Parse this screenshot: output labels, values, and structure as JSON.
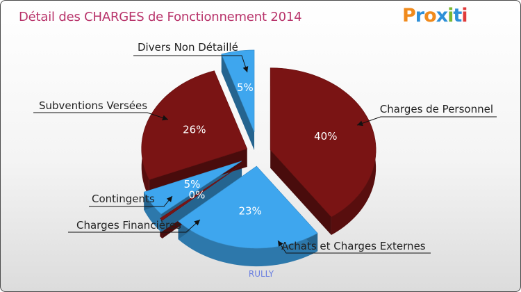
{
  "title": "Détail des CHARGES de Fonctionnement 2014",
  "logo_text": "Proxiti",
  "logo_colors": [
    "#f08a1c",
    "#2d8fd8",
    "#f08a1c",
    "#2d8fd8",
    "#7ab830",
    "#2d8fd8",
    "#e03a3a"
  ],
  "footer": "RULLY",
  "chart_data": {
    "type": "pie",
    "title": "Détail des CHARGES de Fonctionnement 2014",
    "slices": [
      {
        "label": "Charges de Personnel",
        "value": 40,
        "pct_text": "40%",
        "color": "#7a1414"
      },
      {
        "label": "Achats et Charges Externes",
        "value": 23,
        "pct_text": "23%",
        "color": "#3ea6ee"
      },
      {
        "label": "Charges Financières",
        "value": 0.5,
        "pct_text": "0%",
        "color": "#7a1414"
      },
      {
        "label": "Contingents",
        "value": 5,
        "pct_text": "5%",
        "color": "#3ea6ee"
      },
      {
        "label": "Subventions Versées",
        "value": 26,
        "pct_text": "26%",
        "color": "#7a1414"
      },
      {
        "label": "Divers Non Détaillé",
        "value": 5,
        "pct_text": "5%",
        "color": "#3ea6ee"
      }
    ]
  }
}
